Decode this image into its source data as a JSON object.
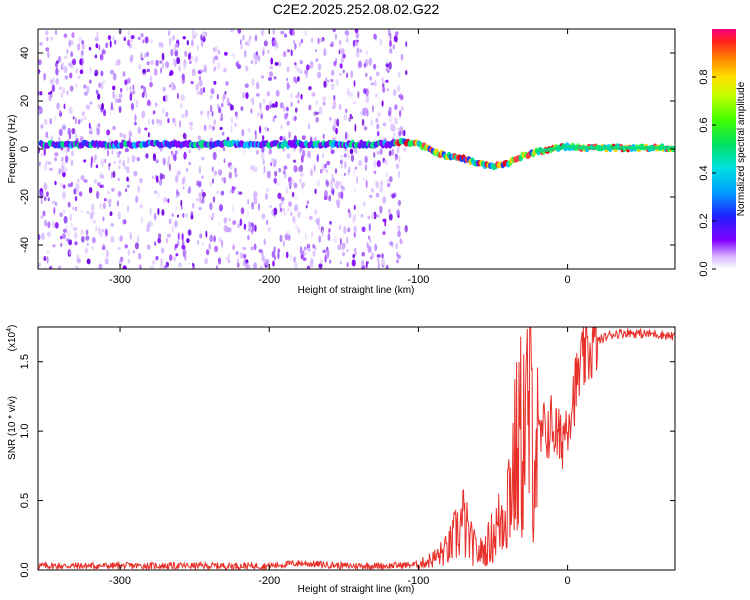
{
  "title": "C2E2.2025.252.08.02.G22",
  "spectrogram": {
    "chart_data": {
      "type": "heatmap",
      "title": "C2E2.2025.252.08.02.G22",
      "xlabel": "Height of straight line (km)",
      "ylabel": "Frequency (Hz)",
      "xlim": [
        -355,
        72
      ],
      "ylim": [
        -50,
        50
      ],
      "x_ticks": [
        "-300",
        "-200",
        "-100",
        "0"
      ],
      "y_ticks": [
        "-40",
        "-20",
        "0",
        "20",
        "40"
      ],
      "x_tick_values": [
        -300,
        -200,
        -100,
        0
      ],
      "y_tick_values": [
        -40,
        -20,
        0,
        20,
        40
      ],
      "noise_region_x": [
        -355,
        -108
      ],
      "signal_track": {
        "x": [
          -355,
          -300,
          -250,
          -200,
          -150,
          -120,
          -110,
          -100,
          -90,
          -80,
          -70,
          -60,
          -50,
          -40,
          -30,
          -20,
          -10,
          0,
          10,
          20,
          30,
          40,
          50,
          60,
          72
        ],
        "freq": [
          2,
          2,
          2,
          2,
          2,
          2,
          3,
          2,
          -1,
          -3,
          -4,
          -6,
          -7,
          -6,
          -3,
          -1,
          0,
          1,
          0.5,
          0.5,
          0.5,
          0.5,
          0.5,
          0.5,
          0.5
        ]
      }
    },
    "colorbar": {
      "label": "Normalized spectral amplitude",
      "ticks": [
        "0.0",
        "0.2",
        "0.4",
        "0.6",
        "0.8"
      ],
      "tick_values": [
        0.0,
        0.2,
        0.4,
        0.6,
        0.8
      ],
      "range": [
        0,
        1
      ]
    }
  },
  "snr": {
    "chart_data": {
      "type": "line",
      "xlabel": "Height of straight line (km)",
      "ylabel": "SNR (10 * v/v)",
      "scale_label": "(x10",
      "scale_exp": "4",
      "xlim": [
        -355,
        72
      ],
      "ylim": [
        0,
        17500
      ],
      "x_ticks": [
        "-300",
        "-200",
        "-100",
        "0"
      ],
      "y_ticks": [
        "0.0",
        "0.5",
        "1.0",
        "1.5"
      ],
      "x_tick_values": [
        -300,
        -200,
        -100,
        0
      ],
      "y_tick_values": [
        0,
        5000,
        10000,
        15000
      ],
      "series": [
        {
          "name": "SNR",
          "color": "#e8302a",
          "x": [
            -355,
            -300,
            -250,
            -200,
            -180,
            -150,
            -120,
            -100,
            -90,
            -80,
            -75,
            -70,
            -65,
            -60,
            -55,
            -50,
            -45,
            -40,
            -35,
            -30,
            -25,
            -20,
            -15,
            -10,
            -5,
            0,
            5,
            10,
            20,
            30,
            40,
            50,
            60,
            72
          ],
          "y": [
            300,
            300,
            300,
            300,
            500,
            300,
            300,
            400,
            800,
            1500,
            2500,
            3500,
            2000,
            1200,
            1500,
            2500,
            3500,
            5500,
            8000,
            10000,
            11000,
            9000,
            10000,
            10500,
            9000,
            11000,
            13000,
            15000,
            16500,
            17000,
            17100,
            17000,
            17000,
            16800
          ]
        }
      ]
    }
  },
  "colors": {
    "noise_violet": "#8000ff",
    "signal_low": "#0040ff",
    "signal_mid": "#00e080",
    "signal_high": "#e00020",
    "line_red": "#e8302a"
  }
}
